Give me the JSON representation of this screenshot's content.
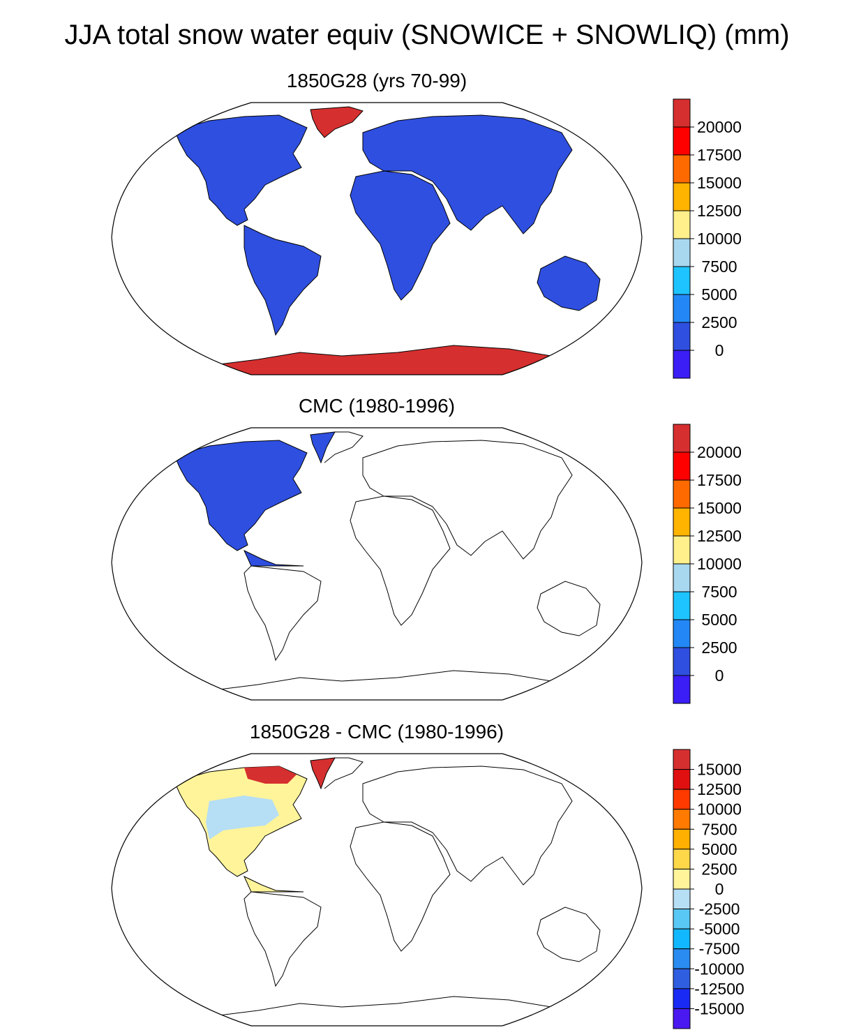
{
  "title": "JJA total snow water equiv (SNOWICE + SNOWLIQ) (mm)",
  "panels": [
    {
      "title": "1850G28 (yrs 70-99)",
      "colorbar": {
        "labels": [
          "20000",
          "17500",
          "15000",
          "12500",
          "10000",
          "7500",
          "5000",
          "2500",
          "0"
        ],
        "colors": [
          "#d62f2f",
          "#ff0000",
          "#ff6a00",
          "#ffb400",
          "#fff08c",
          "#a8d8f0",
          "#1ec4ff",
          "#2388f6",
          "#2f4fe0",
          "#3a1ef5"
        ]
      }
    },
    {
      "title": "CMC (1980-1996)",
      "colorbar": {
        "labels": [
          "20000",
          "17500",
          "15000",
          "12500",
          "10000",
          "7500",
          "5000",
          "2500",
          "0"
        ],
        "colors": [
          "#d62f2f",
          "#ff0000",
          "#ff6a00",
          "#ffb400",
          "#fff08c",
          "#a8d8f0",
          "#1ec4ff",
          "#2388f6",
          "#2f4fe0",
          "#3a1ef5"
        ]
      }
    },
    {
      "title": "1850G28 - CMC (1980-1996)",
      "colorbar": {
        "labels": [
          "15000",
          "12500",
          "10000",
          "7500",
          "5000",
          "2500",
          "0",
          "-2500",
          "-5000",
          "-7500",
          "-10000",
          "-12500",
          "-15000"
        ],
        "colors": [
          "#d62f2f",
          "#e01010",
          "#ff3a00",
          "#ff7a00",
          "#ffb000",
          "#ffd84a",
          "#fff49a",
          "#b6def4",
          "#5ac8f5",
          "#12b8ff",
          "#2a8cf0",
          "#2f5fe0",
          "#1a2af5",
          "#4a18f0"
        ]
      }
    }
  ],
  "legend_colors": {
    "snow_blue": "#2f4fe0",
    "ice_red": "#d62f2f",
    "diff_yellow": "#fff49a",
    "diff_lightblue": "#b6def4"
  }
}
